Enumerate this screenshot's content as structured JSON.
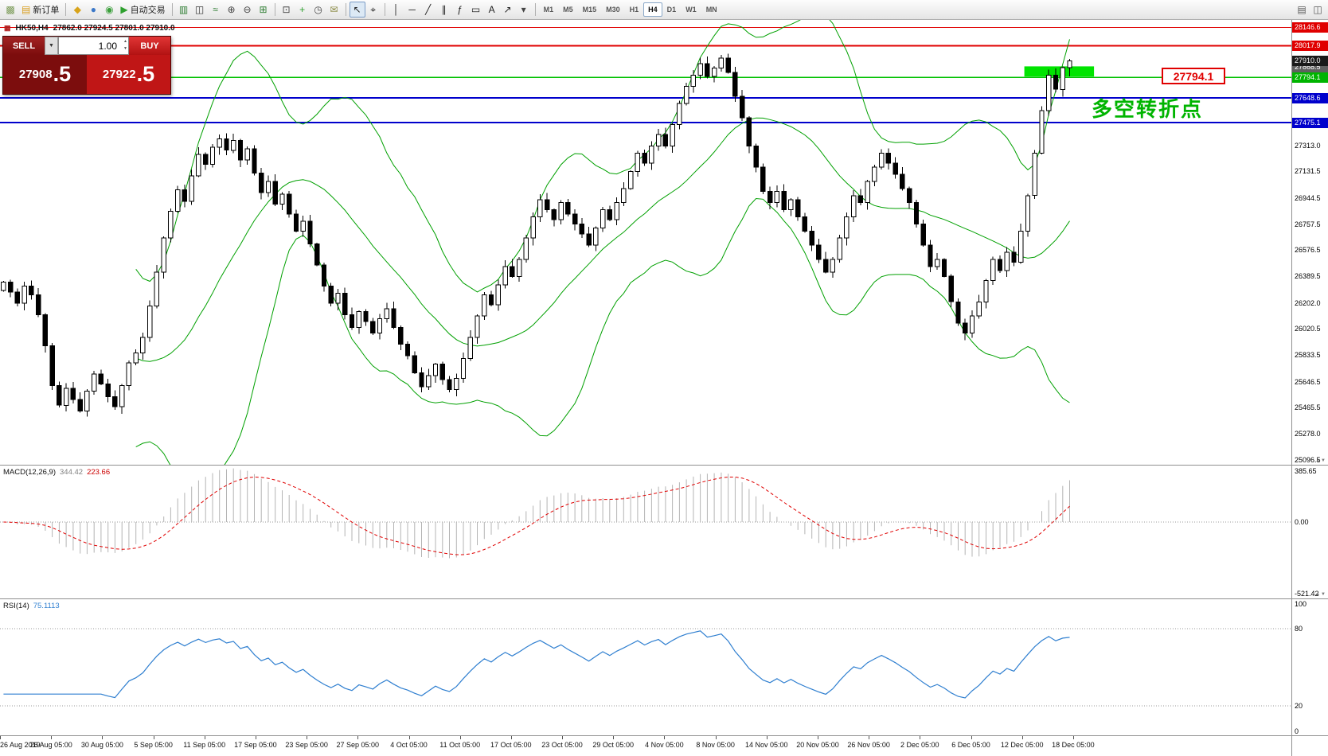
{
  "colors": {
    "bull": "#ffffff",
    "bear": "#000000",
    "outline": "#000000",
    "bollinger": "#00a000",
    "macd_hist": "#b4b4b4",
    "macd_signal": "#e00000",
    "rsi_line": "#2f7fd0",
    "grid_dotted": "#999999"
  },
  "toolbar": {
    "groups": [
      {
        "items": [
          {
            "name": "app-icon",
            "glyph": "▩",
            "color": "#7a9a56"
          },
          {
            "name": "new-order-button",
            "glyph": "▤",
            "color": "#d89c1a",
            "label": "新订单"
          }
        ]
      },
      {
        "sep": true
      },
      {
        "items": [
          {
            "name": "profiles-icon",
            "glyph": "◆",
            "color": "#d8a31a"
          },
          {
            "name": "market-watch-icon",
            "glyph": "●",
            "color": "#3c78c8"
          },
          {
            "name": "data-window-icon",
            "glyph": "◉",
            "color": "#3ca03c"
          },
          {
            "name": "autotrade-button",
            "glyph": "▶",
            "color": "#2ea02e",
            "label": "自动交易"
          }
        ]
      },
      {
        "sep": true
      },
      {
        "items": [
          {
            "name": "bar-chart-icon",
            "glyph": "▥",
            "color": "#2e7d32"
          },
          {
            "name": "candlestick-chart-icon",
            "glyph": "◫",
            "color": "#333333"
          },
          {
            "name": "line-chart-icon",
            "glyph": "≈",
            "color": "#2e7d32"
          },
          {
            "name": "zoom-in-icon",
            "glyph": "⊕",
            "color": "#444444"
          },
          {
            "name": "zoom-out-icon",
            "glyph": "⊖",
            "color": "#444444"
          },
          {
            "name": "tile-windows-icon",
            "glyph": "⊞",
            "color": "#2e7d32"
          }
        ]
      },
      {
        "sep": true
      },
      {
        "items": [
          {
            "name": "new-chart-icon",
            "glyph": "⊡",
            "color": "#444444"
          },
          {
            "name": "indicators-icon",
            "glyph": "+",
            "color": "#2ea02e"
          },
          {
            "name": "periods-icon",
            "glyph": "◷",
            "color": "#444444"
          },
          {
            "name": "templates-icon",
            "glyph": "✉",
            "color": "#8a8a44"
          }
        ]
      },
      {
        "sep": true
      },
      {
        "items": [
          {
            "name": "cursor-icon",
            "glyph": "↖",
            "color": "#222222",
            "active": true
          },
          {
            "name": "crosshair-icon",
            "glyph": "⌖",
            "color": "#222222"
          }
        ]
      },
      {
        "sep": true
      },
      {
        "items": [
          {
            "name": "vertical-line-icon",
            "glyph": "│",
            "color": "#222222"
          },
          {
            "name": "horizontal-line-icon",
            "glyph": "─",
            "color": "#222222"
          },
          {
            "name": "trendline-icon",
            "glyph": "╱",
            "color": "#222222"
          },
          {
            "name": "channel-icon",
            "glyph": "∥",
            "color": "#222222"
          },
          {
            "name": "fibonacci-icon",
            "glyph": "ƒ",
            "color": "#222222"
          },
          {
            "name": "shapes-icon",
            "glyph": "▭",
            "color": "#222222"
          },
          {
            "name": "text-icon",
            "glyph": "A",
            "color": "#222222"
          },
          {
            "name": "arrow-tool-icon",
            "glyph": "↗",
            "color": "#222222"
          },
          {
            "name": "shapes-dropdown-icon",
            "glyph": "▾",
            "color": "#444444"
          }
        ]
      },
      {
        "sep": true
      }
    ],
    "timeframes": [
      "M1",
      "M5",
      "M15",
      "M30",
      "H1",
      "H4",
      "D1",
      "W1",
      "MN"
    ],
    "active_timeframe": "H4",
    "right_icons": [
      {
        "name": "chart-list-toggle-icon",
        "glyph": "▤",
        "color": "#555555"
      },
      {
        "name": "window-dock-toggle-icon",
        "glyph": "◫",
        "color": "#555555"
      }
    ]
  },
  "chart_header": {
    "symbol_period": "HK50,H4",
    "ohlc_text": "27862.0 27924.5 27801.0 27910.0"
  },
  "order_panel": {
    "sell_label": "SELL",
    "buy_label": "BUY",
    "volume": "1.00",
    "dropdown_glyph": "▼",
    "sell_price_int": "27908",
    "sell_price_frac": ".5",
    "buy_price_int": "27922",
    "buy_price_frac": ".5"
  },
  "annotations": {
    "turning_point_text": "多空转折点",
    "price_callout": "27794.1"
  },
  "price_axis": {
    "highlight_labels": [
      {
        "text": "28146.6",
        "price": 28146.6,
        "bg": "#e00000",
        "fg": "#ffffff"
      },
      {
        "text": "28017.9",
        "price": 28017.9,
        "bg": "#e00000",
        "fg": "#ffffff"
      },
      {
        "text": "27868.5",
        "price": 27868.5,
        "bg": "#606060",
        "fg": "#ffffff"
      },
      {
        "text": "27910.0",
        "price": 27910.0,
        "bg": "#1a1a1a",
        "fg": "#ffffff"
      },
      {
        "text": "27794.1",
        "price": 27794.1,
        "bg": "#00b400",
        "fg": "#ffffff"
      },
      {
        "text": "27648.6",
        "price": 27648.6,
        "bg": "#0000cc",
        "fg": "#ffffff"
      },
      {
        "text": "27475.1",
        "price": 27475.1,
        "bg": "#0000cc",
        "fg": "#ffffff"
      }
    ],
    "scale_labels": [
      "27313.0",
      "27131.5",
      "26944.5",
      "26757.5",
      "26576.5",
      "26389.5",
      "26202.0",
      "26020.5",
      "25833.5",
      "25646.5",
      "25465.5",
      "25278.0",
      "25096.5"
    ]
  },
  "levels": [
    {
      "price": 28146.6,
      "color": "#e00000",
      "width": 1
    },
    {
      "price": 28017.9,
      "color": "#e00000",
      "width": 2
    },
    {
      "price": 27794.1,
      "color": "#00c000",
      "width": 1.5
    },
    {
      "price": 27648.6,
      "color": "#0000cc",
      "width": 2
    },
    {
      "price": 27475.1,
      "color": "#0000cc",
      "width": 2
    }
  ],
  "macd": {
    "name": "MACD(12,26,9)",
    "value_main": "344.42",
    "value_signal": "223.66",
    "axis_labels": [
      "385.65",
      "0.00",
      "-521.42"
    ]
  },
  "rsi": {
    "name": "RSI(14)",
    "value": "75.1113",
    "axis_labels": [
      "100",
      "80",
      "20",
      "0"
    ]
  },
  "time_axis": [
    "26 Aug 2019",
    "26 Aug 05:00",
    "30 Aug 05:00",
    "5 Sep 05:00",
    "11 Sep 05:00",
    "17 Sep 05:00",
    "23 Sep 05:00",
    "27 Sep 05:00",
    "4 Oct 05:00",
    "11 Oct 05:00",
    "17 Oct 05:00",
    "23 Oct 05:00",
    "29 Oct 05:00",
    "4 Nov 05:00",
    "8 Nov 05:00",
    "14 Nov 05:00",
    "20 Nov 05:00",
    "26 Nov 05:00",
    "2 Dec 05:00",
    "6 Dec 05:00",
    "12 Dec 05:00",
    "18 Dec 05:00"
  ],
  "chart_data": {
    "type": "candlestick",
    "symbol": "HK50",
    "timeframe": "H4",
    "ohlc_current": {
      "open": 27862.0,
      "high": 27924.5,
      "low": 27801.0,
      "close": 27910.0
    },
    "price_range": [
      25060,
      28200
    ],
    "candle_region_ratio": 0.831,
    "closes": [
      26350,
      26280,
      26200,
      26320,
      26260,
      26120,
      25900,
      25620,
      25480,
      25600,
      25520,
      25440,
      25580,
      25700,
      25630,
      25540,
      25470,
      25620,
      25780,
      25850,
      25960,
      26180,
      26420,
      26660,
      26850,
      27000,
      26920,
      27100,
      27250,
      27180,
      27300,
      27360,
      27280,
      27350,
      27210,
      27290,
      27120,
      26980,
      27060,
      26900,
      26970,
      26830,
      26710,
      26780,
      26620,
      26470,
      26320,
      26200,
      26270,
      26120,
      26030,
      26140,
      26070,
      25990,
      26090,
      26160,
      26030,
      25910,
      25830,
      25710,
      25610,
      25690,
      25770,
      25660,
      25590,
      25670,
      25810,
      25960,
      26110,
      26260,
      26190,
      26330,
      26460,
      26390,
      26510,
      26660,
      26810,
      26930,
      26860,
      26790,
      26910,
      26830,
      26760,
      26690,
      26610,
      26730,
      26860,
      26790,
      26910,
      27010,
      27130,
      27260,
      27190,
      27310,
      27390,
      27310,
      27460,
      27610,
      27730,
      27810,
      27890,
      27800,
      27860,
      27930,
      27830,
      27660,
      27510,
      27310,
      27160,
      26990,
      26910,
      26990,
      26860,
      26930,
      26810,
      26710,
      26610,
      26510,
      26420,
      26510,
      26660,
      26810,
      26960,
      26910,
      27060,
      27160,
      27260,
      27190,
      27110,
      27010,
      26910,
      26760,
      26610,
      26460,
      26510,
      26390,
      26210,
      26060,
      25990,
      26110,
      26210,
      26360,
      26510,
      26430,
      26560,
      26490,
      26710,
      26960,
      27260,
      27560,
      27810,
      27710,
      27862,
      27910
    ],
    "bollinger": {
      "period": 20,
      "deviation": 2
    },
    "macd_range": [
      -521.42,
      385.65
    ],
    "rsi_levels": [
      80,
      20
    ],
    "green_zone": {
      "from_candle": 146.5,
      "to_candle": 156.5,
      "price_top": 27872,
      "price_bottom": 27800
    }
  }
}
